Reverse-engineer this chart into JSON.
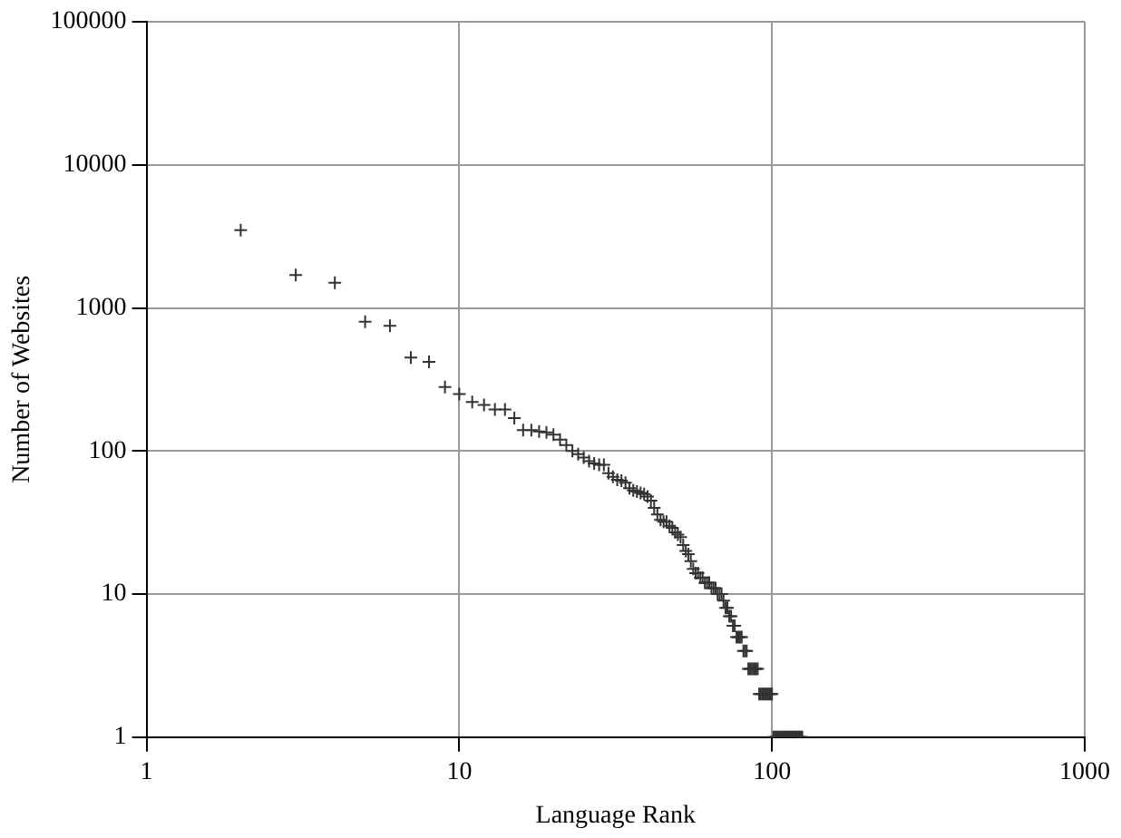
{
  "chart_data": {
    "type": "scatter",
    "xlabel": "Language Rank",
    "ylabel": "Number of Websites",
    "log": "xy",
    "grid": true,
    "legend": false,
    "marker": "cross",
    "xlim": [
      1,
      1000
    ],
    "xticks": [
      1,
      10,
      100,
      1000
    ],
    "ylim": [
      1,
      100000
    ],
    "yticks": [
      1,
      10,
      100,
      1000,
      10000,
      100000
    ],
    "series": [
      {
        "color": "#333333",
        "x": [
          2,
          3,
          4,
          5,
          6,
          7,
          8,
          9,
          10,
          11,
          12,
          13,
          14,
          15,
          16,
          17,
          18,
          19,
          20,
          21,
          22,
          23,
          24,
          25,
          26,
          27,
          28,
          29,
          30,
          31,
          32,
          33,
          34,
          35,
          36,
          37,
          38,
          39,
          40,
          41,
          42,
          43,
          44,
          45,
          46,
          47,
          48,
          49,
          50,
          51,
          52,
          53,
          54,
          55,
          56,
          57,
          58,
          59,
          60,
          61,
          62,
          63,
          64,
          65,
          66,
          67,
          68,
          69,
          70,
          71,
          72,
          73,
          74,
          75,
          76,
          77,
          78,
          79,
          80,
          81,
          82,
          83,
          84,
          85,
          86,
          87,
          88,
          89,
          90,
          91,
          92,
          93,
          94,
          95,
          96,
          97,
          98,
          99,
          100,
          101,
          102,
          103,
          104,
          105,
          106,
          107,
          108,
          109,
          110,
          111,
          112,
          113,
          114,
          115,
          116,
          117,
          118,
          119,
          120,
          121,
          122,
          123,
          124,
          125
        ],
        "values": [
          3500,
          1700,
          1500,
          800,
          750,
          450,
          420,
          280,
          250,
          220,
          210,
          195,
          195,
          170,
          140,
          140,
          137,
          135,
          130,
          120,
          110,
          100,
          95,
          90,
          85,
          82,
          80,
          80,
          70,
          66,
          63,
          62,
          60,
          55,
          53,
          52,
          51,
          50,
          48,
          45,
          40,
          36,
          33,
          32,
          32,
          30,
          29,
          27,
          26,
          25,
          22,
          20,
          19,
          17,
          15,
          14,
          14,
          13,
          13,
          12,
          12,
          12,
          11,
          11,
          11,
          10,
          10,
          10,
          9,
          8,
          8,
          7,
          7,
          6,
          6,
          5,
          5,
          5,
          5,
          4,
          4,
          4,
          3,
          3,
          3,
          3,
          3,
          3,
          3,
          2,
          2,
          2,
          2,
          2,
          2,
          2,
          2,
          2,
          2,
          1,
          1,
          1,
          1,
          1,
          1,
          1,
          1,
          1,
          1,
          1,
          1,
          1,
          1,
          1,
          1,
          1,
          1,
          1,
          1,
          1,
          1,
          1,
          1,
          1
        ]
      }
    ]
  }
}
